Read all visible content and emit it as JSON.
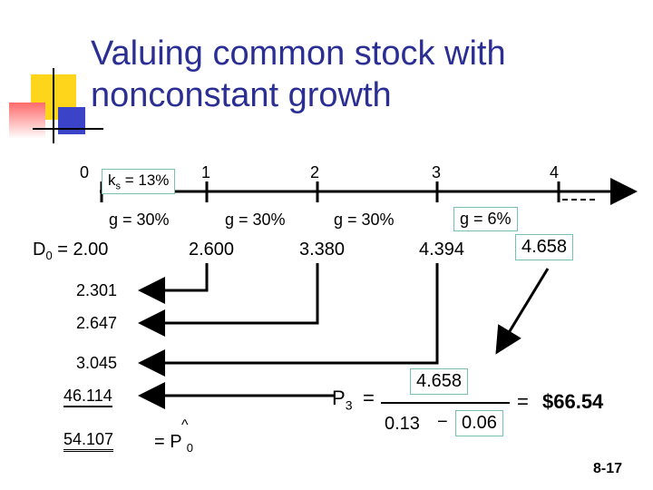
{
  "slide": {
    "title_line1": "Valuing common stock with",
    "title_line2": "nonconstant growth",
    "slide_number": "8-17"
  },
  "timeline": {
    "periods": [
      "0",
      "1",
      "2",
      "3",
      "4"
    ],
    "ks": {
      "k": "k",
      "sub": "s",
      "rest": " = 13%"
    },
    "growth_rates": [
      "g = 30%",
      "g = 30%",
      "g = 30%",
      "g = 6%"
    ],
    "d0_label": {
      "d": "D",
      "sub": "0",
      "rest": " = 2.00"
    },
    "dividends": [
      "2.600",
      "3.380",
      "4.394",
      "4.658"
    ]
  },
  "present_values": [
    "2.301",
    "2.647",
    "3.045",
    "46.114"
  ],
  "total": {
    "value": "54.107",
    "eq": "= P",
    "hat": "^",
    "sub": "0"
  },
  "terminal": {
    "p_label": "P",
    "p_sub": "3",
    "numerator": "4.658",
    "denominator_left": "0.13",
    "minus": "−",
    "denominator_right": "0.06",
    "equals": "=",
    "result": "$66.54"
  }
}
